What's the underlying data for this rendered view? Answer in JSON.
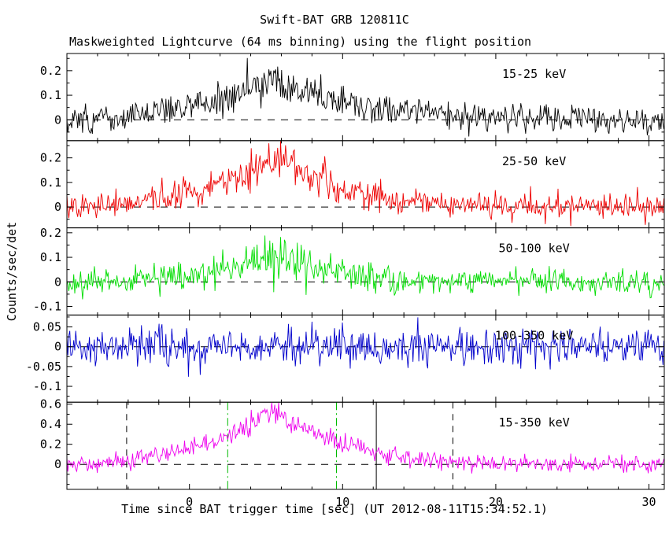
{
  "header": {
    "title": "Swift-BAT GRB 120811C",
    "subtitle": "Maskweighted Lightcurve (64 ms binning) using the flight position"
  },
  "axes": {
    "xlabel": "Time since BAT trigger time [sec] (UT 2012-08-11T15:34:52.1)",
    "ylabel": "Counts/sec/det"
  },
  "chart_data": {
    "type": "line",
    "title": "Swift-BAT GRB 120811C",
    "subtitle": "Maskweighted Lightcurve (64 ms binning) using the flight position",
    "xlabel": "Time since BAT trigger time [sec] (UT 2012-08-11T15:34:52.1)",
    "ylabel": "Counts/sec/det",
    "grid": false,
    "x_range": [
      -8,
      31
    ],
    "x_ticks": [
      0,
      10,
      20,
      30
    ],
    "x_minor_step": 2,
    "bin_sec": 0.064,
    "band_label_time": 22.5,
    "panels": [
      {
        "label": "15-25 keV",
        "color": "#000000",
        "ylim": [
          -0.085,
          0.27
        ],
        "yticks": [
          0,
          0.1,
          0.2
        ],
        "noise_sigma": 0.026,
        "seed": 101,
        "zero_line": true,
        "vlines": [],
        "envelope": [
          [
            -8,
            0
          ],
          [
            -6,
            0.002
          ],
          [
            -4,
            0.015
          ],
          [
            -2,
            0.035
          ],
          [
            0,
            0.055
          ],
          [
            1,
            0.065
          ],
          [
            2,
            0.08
          ],
          [
            3,
            0.1
          ],
          [
            4,
            0.13
          ],
          [
            5,
            0.155
          ],
          [
            5.5,
            0.165
          ],
          [
            6,
            0.16
          ],
          [
            6.5,
            0.14
          ],
          [
            7,
            0.125
          ],
          [
            8,
            0.105
          ],
          [
            9,
            0.09
          ],
          [
            10,
            0.075
          ],
          [
            11,
            0.06
          ],
          [
            12,
            0.05
          ],
          [
            14,
            0.032
          ],
          [
            16,
            0.02
          ],
          [
            18,
            0.012
          ],
          [
            20,
            0.007
          ],
          [
            24,
            0.003
          ],
          [
            31,
            0
          ]
        ]
      },
      {
        "label": "25-50 keV",
        "color": "#ee0000",
        "ylim": [
          -0.085,
          0.27
        ],
        "yticks": [
          0,
          0.1,
          0.2
        ],
        "noise_sigma": 0.026,
        "seed": 202,
        "zero_line": true,
        "vlines": [],
        "envelope": [
          [
            -8,
            0
          ],
          [
            -6,
            0.002
          ],
          [
            -4,
            0.015
          ],
          [
            -2,
            0.04
          ],
          [
            0,
            0.065
          ],
          [
            1,
            0.08
          ],
          [
            2,
            0.1
          ],
          [
            3,
            0.125
          ],
          [
            4,
            0.155
          ],
          [
            5,
            0.185
          ],
          [
            5.5,
            0.195
          ],
          [
            6,
            0.185
          ],
          [
            6.5,
            0.165
          ],
          [
            7,
            0.15
          ],
          [
            8,
            0.12
          ],
          [
            9,
            0.1
          ],
          [
            10,
            0.075
          ],
          [
            11,
            0.055
          ],
          [
            12,
            0.04
          ],
          [
            14,
            0.02
          ],
          [
            16,
            0.01
          ],
          [
            18,
            0.005
          ],
          [
            22,
            0.002
          ],
          [
            31,
            0
          ]
        ]
      },
      {
        "label": "50-100 keV",
        "color": "#00dd00",
        "ylim": [
          -0.135,
          0.22
        ],
        "yticks": [
          -0.1,
          0,
          0.1,
          0.2
        ],
        "noise_sigma": 0.026,
        "seed": 303,
        "zero_line": true,
        "vlines": [],
        "envelope": [
          [
            -8,
            0
          ],
          [
            -5,
            0.003
          ],
          [
            -3,
            0.01
          ],
          [
            -1,
            0.022
          ],
          [
            0,
            0.03
          ],
          [
            1,
            0.04
          ],
          [
            2,
            0.052
          ],
          [
            3,
            0.065
          ],
          [
            4,
            0.085
          ],
          [
            5,
            0.105
          ],
          [
            5.5,
            0.115
          ],
          [
            6,
            0.108
          ],
          [
            6.5,
            0.095
          ],
          [
            7,
            0.082
          ],
          [
            8,
            0.062
          ],
          [
            9,
            0.05
          ],
          [
            10,
            0.035
          ],
          [
            11,
            0.025
          ],
          [
            12,
            0.018
          ],
          [
            14,
            0.008
          ],
          [
            16,
            0.004
          ],
          [
            31,
            0
          ]
        ]
      },
      {
        "label": "100-350 keV",
        "color": "#0000cc",
        "ylim": [
          -0.14,
          0.08
        ],
        "yticks": [
          -0.1,
          -0.05,
          0,
          0.05
        ],
        "noise_sigma": 0.025,
        "seed": 404,
        "zero_line": true,
        "vlines": [],
        "envelope": [
          [
            -8,
            0
          ],
          [
            31,
            0
          ]
        ]
      },
      {
        "label": "15-350 keV",
        "color": "#ee00ee",
        "ylim": [
          -0.25,
          0.62
        ],
        "yticks": [
          0,
          0.2,
          0.4,
          0.6
        ],
        "noise_sigma": 0.04,
        "seed": 505,
        "zero_line": true,
        "vlines": [
          {
            "t": -4.1,
            "style": "dashed",
            "color": "#000000"
          },
          {
            "t": 2.5,
            "style": "dashdot",
            "color": "#00bb00"
          },
          {
            "t": 9.6,
            "style": "dashdot",
            "color": "#00bb00"
          },
          {
            "t": 12.2,
            "style": "solid",
            "color": "#000000"
          },
          {
            "t": 17.2,
            "style": "dashed",
            "color": "#000000"
          }
        ],
        "envelope": [
          [
            -8,
            0
          ],
          [
            -6,
            0.01
          ],
          [
            -4,
            0.04
          ],
          [
            -2,
            0.1
          ],
          [
            0,
            0.16
          ],
          [
            1,
            0.2
          ],
          [
            2,
            0.25
          ],
          [
            3,
            0.31
          ],
          [
            4,
            0.4
          ],
          [
            5,
            0.48
          ],
          [
            5.5,
            0.52
          ],
          [
            6,
            0.5
          ],
          [
            6.5,
            0.45
          ],
          [
            7,
            0.4
          ],
          [
            8,
            0.33
          ],
          [
            9,
            0.27
          ],
          [
            10,
            0.21
          ],
          [
            11,
            0.16
          ],
          [
            12,
            0.12
          ],
          [
            14,
            0.07
          ],
          [
            16,
            0.04
          ],
          [
            18,
            0.022
          ],
          [
            20,
            0.012
          ],
          [
            24,
            0.005
          ],
          [
            31,
            0
          ]
        ]
      }
    ]
  }
}
